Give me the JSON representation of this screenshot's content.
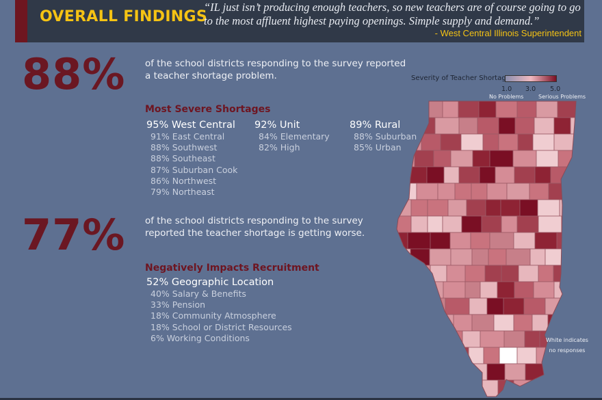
{
  "header": {
    "title": "OVERALL FINDINGS",
    "quote": "“IL just isn’t producing enough teachers, so new teachers are of course going to go to the most affluent highest paying openings. Simple supply and demand.”",
    "attribution": "- West Central Illinois Superintendent",
    "accent_color": "#6e1620",
    "title_color": "#f5c314"
  },
  "stat1": {
    "value": "88%",
    "text": "of the school districts responding to the survey reported a teacher shortage problem."
  },
  "severe": {
    "heading": "Most Severe Shortages",
    "columns": [
      {
        "lead": "95% West Central",
        "items": [
          "91% East Central",
          "88% Southwest",
          "88% Southeast",
          "87% Suburban Cook",
          "86% Northwest",
          "79% Northeast"
        ]
      },
      {
        "lead": "92% Unit",
        "items": [
          "84% Elementary",
          "82% High"
        ]
      },
      {
        "lead": "89% Rural",
        "items": [
          "88% Suburban",
          "85% Urban"
        ]
      }
    ]
  },
  "stat2": {
    "value": "77%",
    "text": "of the school districts responding to the survey reported the teacher shortage is getting worse."
  },
  "recruitment": {
    "heading": "Negatively Impacts Recruitment",
    "lead": "52% Geographic Location",
    "items": [
      "40% Salary & Benefits",
      "33% Pension",
      "18% Community Atmosphere",
      "18% School or District Resources",
      "6% Working Conditions"
    ]
  },
  "map": {
    "legend_title": "Severity of Teacher Shortage",
    "ticks": [
      "1.0",
      "3.0",
      "5.0"
    ],
    "low_label": "No Problems",
    "high_label": "Serious Problems",
    "note": [
      "White indicates",
      "no responses"
    ],
    "scale_colors": [
      "#8b8fae",
      "#f0b9c0",
      "#7a0f24"
    ],
    "no_response_color": "#ffffff"
  }
}
